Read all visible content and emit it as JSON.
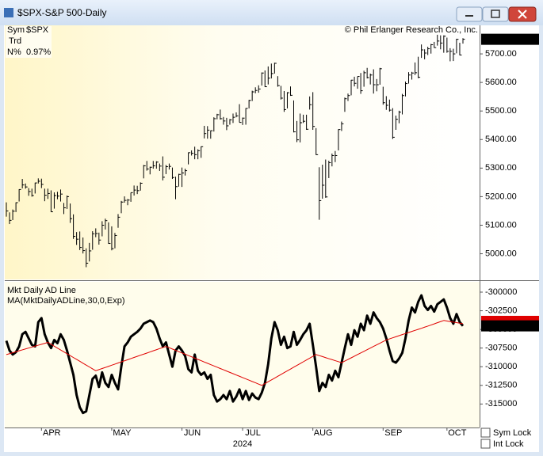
{
  "window": {
    "title": "$SPX-S&P 500-Daily"
  },
  "controls": {
    "sym_lock": "Sym Lock",
    "int_lock": "Int Lock"
  },
  "chart_data": [
    {
      "type": "ohlc",
      "info": {
        "sym_label": "Sym",
        "symbol": "$SPX",
        "trd_label": "Trd",
        "n_label": "N%",
        "n_value": "0.97%"
      },
      "copyright": "© Phil Erlanger Research Co., Inc.",
      "color": "#000000",
      "xlim": [
        -0.5,
        143.5
      ],
      "ylim": [
        4910,
        5800
      ],
      "yticks": [
        {
          "value": 5000,
          "label": "5000.00"
        },
        {
          "value": 5100,
          "label": "5100.00"
        },
        {
          "value": 5200,
          "label": "5200.00"
        },
        {
          "value": 5300,
          "label": "5300.00"
        },
        {
          "value": 5400,
          "label": "5400.00"
        },
        {
          "value": 5500,
          "label": "5500.00"
        },
        {
          "value": 5600,
          "label": "5600.00"
        },
        {
          "value": 5700,
          "label": "5700.00"
        }
      ],
      "high": [
        5180,
        5145,
        5155,
        5180,
        5226,
        5262,
        5246,
        5230,
        5228,
        5249,
        5264,
        5263,
        5228,
        5228,
        5222,
        5215,
        5217,
        5225,
        5178,
        5204,
        5176,
        5138,
        5076,
        5078,
        5057,
        5019,
        5038,
        5079,
        5089,
        5074,
        5114,
        5123,
        5110,
        5096,
        5073,
        5139,
        5185,
        5201,
        5192,
        5214,
        5239,
        5238,
        5250,
        5311,
        5325,
        5305,
        5325,
        5324,
        5316,
        5341,
        5311,
        5316,
        5302,
        5270,
        5280,
        5302,
        5298,
        5355,
        5362,
        5375,
        5366,
        5376,
        5448,
        5447,
        5432,
        5478,
        5490,
        5505,
        5479,
        5476,
        5472,
        5491,
        5495,
        5524,
        5477,
        5510,
        5539,
        5571,
        5583,
        5590,
        5635,
        5642,
        5656,
        5666,
        5669,
        5622,
        5588,
        5570,
        5566,
        5586,
        5537,
        5465,
        5491,
        5487,
        5487,
        5551,
        5566,
        5440,
        5303,
        5312,
        5330,
        5326,
        5351,
        5360,
        5436,
        5463,
        5547,
        5561,
        5609,
        5620,
        5621,
        5633,
        5641,
        5651,
        5631,
        5646,
        5612,
        5651,
        5585,
        5552,
        5540,
        5510,
        5484,
        5501,
        5560,
        5603,
        5636,
        5637,
        5670,
        5690,
        5733,
        5716,
        5725,
        5735,
        5742,
        5767,
        5765,
        5765,
        5757,
        5720,
        5718,
        5753,
        5739,
        5755
      ],
      "low": [
        5130,
        5104,
        5118,
        5146,
        5183,
        5229,
        5228,
        5203,
        5200,
        5211,
        5246,
        5230,
        5184,
        5192,
        5146,
        5158,
        5191,
        5183,
        5139,
        5157,
        5108,
        5052,
        5031,
        5013,
        5001,
        4953,
        4973,
        5014,
        5058,
        5032,
        5061,
        5085,
        5035,
        5012,
        5019,
        5091,
        5142,
        5179,
        5170,
        5182,
        5204,
        5209,
        5221,
        5264,
        5291,
        5278,
        5298,
        5298,
        5290,
        5257,
        5279,
        5295,
        5262,
        5191,
        5235,
        5234,
        5274,
        5313,
        5344,
        5331,
        5331,
        5336,
        5404,
        5403,
        5403,
        5428,
        5471,
        5470,
        5452,
        5433,
        5452,
        5458,
        5478,
        5460,
        5451,
        5452,
        5509,
        5535,
        5562,
        5564,
        5589,
        5584,
        5593,
        5614,
        5631,
        5585,
        5540,
        5497,
        5509,
        5553,
        5425,
        5391,
        5390,
        5458,
        5434,
        5505,
        5434,
        5346,
        5119,
        5193,
        5196,
        5265,
        5306,
        5321,
        5362,
        5430,
        5497,
        5535,
        5555,
        5586,
        5578,
        5560,
        5585,
        5614,
        5593,
        5561,
        5569,
        5592,
        5522,
        5504,
        5498,
        5402,
        5434,
        5457,
        5488,
        5551,
        5596,
        5610,
        5626,
        5615,
        5686,
        5681,
        5696,
        5701,
        5721,
        5729,
        5716,
        5704,
        5704,
        5674,
        5675,
        5702,
        5695,
        5736
      ],
      "close": [
        5150,
        5117,
        5149,
        5179,
        5225,
        5241,
        5234,
        5218,
        5204,
        5248,
        5254,
        5243,
        5205,
        5211,
        5147,
        5204,
        5202,
        5209,
        5161,
        5200,
        5123,
        5061,
        5051,
        5022,
        5011,
        4967,
        5010,
        5070,
        5071,
        5048,
        5100,
        5116,
        5036,
        5018,
        5064,
        5128,
        5181,
        5187,
        5188,
        5214,
        5223,
        5221,
        5247,
        5308,
        5297,
        5303,
        5308,
        5321,
        5307,
        5268,
        5305,
        5306,
        5267,
        5235,
        5278,
        5283,
        5291,
        5354,
        5352,
        5347,
        5361,
        5375,
        5421,
        5433,
        5431,
        5473,
        5487,
        5473,
        5465,
        5448,
        5469,
        5478,
        5483,
        5460,
        5475,
        5509,
        5537,
        5567,
        5572,
        5577,
        5633,
        5585,
        5615,
        5631,
        5667,
        5589,
        5545,
        5505,
        5564,
        5555,
        5427,
        5399,
        5459,
        5464,
        5436,
        5522,
        5446,
        5347,
        5186,
        5240,
        5199,
        5319,
        5344,
        5344,
        5435,
        5455,
        5543,
        5554,
        5608,
        5597,
        5621,
        5571,
        5634,
        5617,
        5626,
        5592,
        5592,
        5648,
        5529,
        5520,
        5503,
        5408,
        5471,
        5496,
        5554,
        5596,
        5626,
        5633,
        5634,
        5618,
        5714,
        5703,
        5718,
        5732,
        5722,
        5745,
        5738,
        5762,
        5709,
        5709,
        5700,
        5751,
        5696,
        5751.13
      ]
    },
    {
      "type": "line",
      "xlim": [
        -0.5,
        143.5
      ],
      "ylim": [
        -318150,
        -298620
      ],
      "yticks": [
        -300000,
        -302500,
        -305000,
        -307500,
        -310000,
        -312500,
        -315000
      ],
      "xticks": [
        {
          "value": 11,
          "label": "APR"
        },
        {
          "value": 33,
          "label": "MAY"
        },
        {
          "value": 55,
          "label": "JUN"
        },
        {
          "value": 74,
          "label": "JUL"
        },
        {
          "value": 96,
          "label": "AUG"
        },
        {
          "value": 118,
          "label": "SEP"
        },
        {
          "value": 138,
          "label": "OCT"
        }
      ],
      "x_label": "2024",
      "series": [
        {
          "name": "Mkt Daily AD Line",
          "color": "#000000",
          "width": 3,
          "values": [
            -306520,
            -307830,
            -308370,
            -308040,
            -307280,
            -305650,
            -305330,
            -306200,
            -307070,
            -307280,
            -304020,
            -303480,
            -305650,
            -306740,
            -307500,
            -306410,
            -306850,
            -305650,
            -306410,
            -307830,
            -309460,
            -311090,
            -313800,
            -315440,
            -316200,
            -315980,
            -313800,
            -311630,
            -311200,
            -312720,
            -310760,
            -312170,
            -312720,
            -311090,
            -312170,
            -313040,
            -310000,
            -307280,
            -306740,
            -305980,
            -305650,
            -305330,
            -304890,
            -304240,
            -304020,
            -303800,
            -304020,
            -304890,
            -306200,
            -307280,
            -306740,
            -308370,
            -310000,
            -307830,
            -307280,
            -307830,
            -308590,
            -310330,
            -310760,
            -308370,
            -310540,
            -311090,
            -310760,
            -311630,
            -311090,
            -313800,
            -314670,
            -314350,
            -313800,
            -314350,
            -313260,
            -314670,
            -314020,
            -313040,
            -314350,
            -313260,
            -314460,
            -313590,
            -314130,
            -314350,
            -313480,
            -312170,
            -309670,
            -306200,
            -304020,
            -305110,
            -307070,
            -305980,
            -307500,
            -307280,
            -305330,
            -307070,
            -306410,
            -305650,
            -305110,
            -304240,
            -307070,
            -310000,
            -313260,
            -312170,
            -312720,
            -311090,
            -311850,
            -310540,
            -311410,
            -309460,
            -307500,
            -305650,
            -307070,
            -305110,
            -305980,
            -304240,
            -305110,
            -303150,
            -304240,
            -302720,
            -303480,
            -304020,
            -304890,
            -306200,
            -307830,
            -309240,
            -309460,
            -308910,
            -308150,
            -306200,
            -303800,
            -302070,
            -302720,
            -301300,
            -300430,
            -301850,
            -302390,
            -301850,
            -302610,
            -301630,
            -301300,
            -300980,
            -302070,
            -303480,
            -304240,
            -302940,
            -304020,
            -304523
          ]
        },
        {
          "name": "MA(MktDailyADLine,30,0,Exp)",
          "color": "#e00000",
          "width": 1,
          "values": [
            -308370,
            -308250,
            -308120,
            -308000,
            -307870,
            -307740,
            -307620,
            -307490,
            -307370,
            -307240,
            -307120,
            -306990,
            -306870,
            -306740,
            -306990,
            -307250,
            -307500,
            -307750,
            -308010,
            -308260,
            -308510,
            -308770,
            -309020,
            -309270,
            -309530,
            -309780,
            -310030,
            -310290,
            -310540,
            -310390,
            -310240,
            -310100,
            -309950,
            -309800,
            -309650,
            -309500,
            -309350,
            -309210,
            -309060,
            -308910,
            -308760,
            -308610,
            -308460,
            -308320,
            -308170,
            -308020,
            -307870,
            -307720,
            -307570,
            -307430,
            -307280,
            -307450,
            -307630,
            -307800,
            -307980,
            -308150,
            -308320,
            -308500,
            -308670,
            -308850,
            -309020,
            -309190,
            -309370,
            -309540,
            -309720,
            -309890,
            -310060,
            -310240,
            -310410,
            -310590,
            -310760,
            -310930,
            -311110,
            -311280,
            -311460,
            -311630,
            -311800,
            -311980,
            -312150,
            -312330,
            -312500,
            -312260,
            -312010,
            -311770,
            -311530,
            -311280,
            -311040,
            -310790,
            -310550,
            -310310,
            -310060,
            -309820,
            -309580,
            -309340,
            -309090,
            -308850,
            -308610,
            -308370,
            -308510,
            -308640,
            -308780,
            -308920,
            -309050,
            -309190,
            -309320,
            -309460,
            -309240,
            -309030,
            -308810,
            -308590,
            -308370,
            -308150,
            -307940,
            -307720,
            -307500,
            -307280,
            -307070,
            -306850,
            -306630,
            -306410,
            -306270,
            -306120,
            -305980,
            -305840,
            -305690,
            -305550,
            -305410,
            -305270,
            -305130,
            -304990,
            -304850,
            -304700,
            -304560,
            -304410,
            -304260,
            -304100,
            -303950,
            -303800,
            -303870,
            -303950,
            -304020,
            -304090,
            -304170,
            -304240
          ]
        }
      ]
    }
  ]
}
